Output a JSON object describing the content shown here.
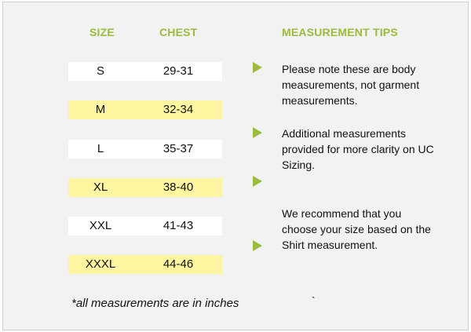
{
  "header": {
    "size_label": "SIZE",
    "chest_label": "CHEST",
    "tips_label": "MEASUREMENT TIPS"
  },
  "rows": [
    {
      "size": "S",
      "chest": "29-31"
    },
    {
      "size": "M",
      "chest": "32-34"
    },
    {
      "size": "L",
      "chest": "35-37"
    },
    {
      "size": "XL",
      "chest": "38-40"
    },
    {
      "size": "XXL",
      "chest": "41-43"
    },
    {
      "size": "XXXL",
      "chest": "44-46"
    }
  ],
  "tips": [
    "Please note these are body measurements, not garment measurements.",
    "Additional measurements provided for more clarity on UC Sizing.",
    "We recommend that you choose your size based on the Shirt measurement."
  ],
  "footnote": "*all measurements are in inches",
  "stray_mark": "`",
  "colors": {
    "accent_green": "#9bbb3c",
    "highlight_yellow": "#fdf5a0",
    "row_white": "#ffffff",
    "panel_gray": "#f2f2f2"
  },
  "icons": {
    "bullet": "triangle-arrow-right-icon"
  }
}
